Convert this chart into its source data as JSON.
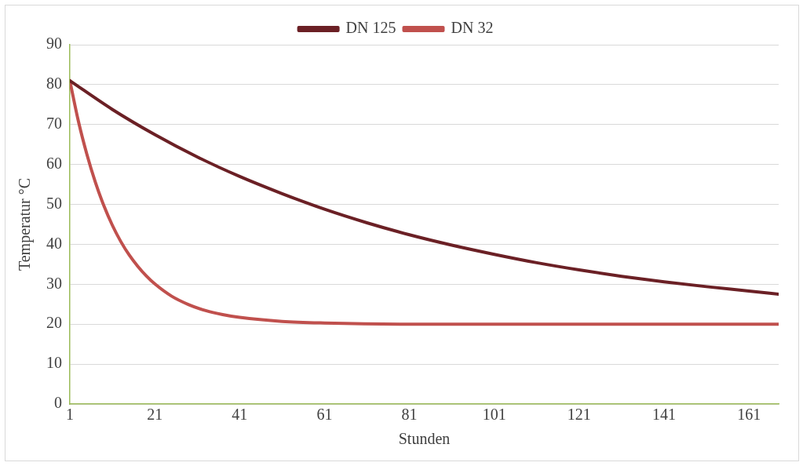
{
  "chart_data": {
    "type": "line",
    "xlabel": "Stunden",
    "ylabel": "Temperatur °C",
    "xlim": [
      1,
      168
    ],
    "xticks": [
      1,
      21,
      41,
      61,
      81,
      101,
      121,
      141,
      161
    ],
    "ylim": [
      0,
      90
    ],
    "yticks": [
      0,
      10,
      20,
      30,
      40,
      50,
      60,
      70,
      80,
      90
    ],
    "grid": "y",
    "legend": "top",
    "marker": "none",
    "line_style": "solid",
    "series": [
      {
        "name": "DN 125",
        "color": "#6b2025",
        "x": [
          1,
          11,
          21,
          31,
          41,
          51,
          61,
          71,
          81,
          91,
          101,
          111,
          121,
          131,
          141,
          151,
          161,
          168
        ],
        "values": [
          81,
          73.8,
          67.5,
          61.9,
          57.0,
          52.7,
          48.8,
          45.4,
          42.4,
          39.8,
          37.5,
          35.4,
          33.6,
          32.0,
          30.6,
          29.4,
          28.3,
          27.5
        ]
      },
      {
        "name": "DN 32",
        "color": "#c0504d",
        "x": [
          1,
          3,
          5,
          7,
          9,
          11,
          13,
          15,
          17,
          19,
          21,
          25,
          29,
          33,
          37,
          41,
          51,
          61,
          81,
          121,
          168
        ],
        "values": [
          81,
          70.9,
          62.6,
          55.6,
          49.7,
          44.8,
          40.7,
          37.3,
          34.5,
          32.1,
          30.1,
          27.0,
          24.9,
          23.4,
          22.4,
          21.7,
          20.7,
          20.3,
          20.0,
          20.0,
          20.0
        ]
      }
    ]
  }
}
